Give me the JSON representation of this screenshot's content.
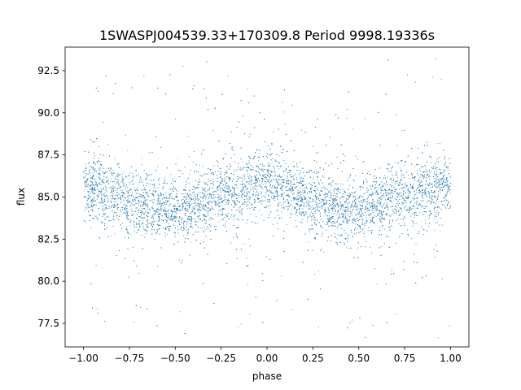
{
  "chart_data": {
    "type": "scatter",
    "title": "1SWASPJ004539.33+170309.8 Period 9998.19336s",
    "xlabel": "phase",
    "ylabel": "flux",
    "xlim": [
      -1.1,
      1.1
    ],
    "ylim": [
      76.1,
      93.9
    ],
    "xticks": [
      -1.0,
      -0.75,
      -0.5,
      -0.25,
      0.0,
      0.25,
      0.5,
      0.75,
      1.0
    ],
    "xtick_labels": [
      "−1.00",
      "−0.75",
      "−0.50",
      "−0.25",
      "0.00",
      "0.25",
      "0.50",
      "0.75",
      "1.00"
    ],
    "yticks": [
      77.5,
      80.0,
      82.5,
      85.0,
      87.5,
      90.0,
      92.5
    ],
    "ytick_labels": [
      "77.5",
      "80.0",
      "82.5",
      "85.0",
      "87.5",
      "90.0",
      "92.5"
    ],
    "grid": false,
    "point_color": "#1f77b4",
    "series": [
      {
        "x_range": [
          -1.0,
          1.0
        ],
        "flux_by_phase": [
          {
            "phase": -1.0,
            "flux": 85.7
          },
          {
            "phase": -0.75,
            "flux": 84.8
          },
          {
            "phase": -0.5,
            "flux": 84.2
          },
          {
            "phase": -0.25,
            "flux": 85.1
          },
          {
            "phase": 0.0,
            "flux": 85.8
          },
          {
            "phase": 0.25,
            "flux": 84.8
          },
          {
            "phase": 0.5,
            "flux": 84.2
          },
          {
            "phase": 0.75,
            "flux": 85.1
          },
          {
            "phase": 1.0,
            "flux": 85.7
          }
        ],
        "core_scatter": 0.95,
        "flux_extent": [
          76.5,
          93.3
        ]
      }
    ]
  }
}
